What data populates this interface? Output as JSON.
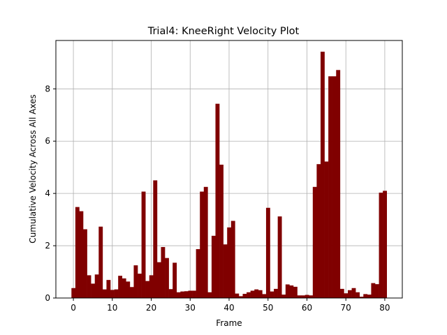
{
  "chart_data": {
    "type": "bar",
    "title": "Trial4: KneeRight Velocity Plot",
    "xlabel": "Frame",
    "ylabel": "Cumulative Velocity Across All Axes",
    "xlim": [
      -4.5,
      84.5
    ],
    "ylim": [
      0,
      9.85
    ],
    "x_ticks": [
      0,
      10,
      20,
      30,
      40,
      50,
      60,
      70,
      80
    ],
    "y_ticks": [
      0,
      2,
      4,
      6,
      8
    ],
    "grid": true,
    "bar_color": "#800000",
    "x": [
      0,
      1,
      2,
      3,
      4,
      5,
      6,
      7,
      8,
      9,
      10,
      11,
      12,
      13,
      14,
      15,
      16,
      17,
      18,
      19,
      20,
      21,
      22,
      23,
      24,
      25,
      26,
      27,
      28,
      29,
      30,
      31,
      32,
      33,
      34,
      35,
      36,
      37,
      38,
      39,
      40,
      41,
      42,
      43,
      44,
      45,
      46,
      47,
      48,
      49,
      50,
      51,
      52,
      53,
      54,
      55,
      56,
      57,
      58,
      59,
      60,
      61,
      62,
      63,
      64,
      65,
      66,
      67,
      68,
      69,
      70,
      71,
      72,
      73,
      74,
      75,
      76,
      77,
      78,
      79,
      80
    ],
    "values": [
      0.38,
      3.48,
      3.32,
      2.63,
      0.87,
      0.55,
      0.9,
      2.73,
      0.33,
      0.69,
      0.31,
      0.33,
      0.85,
      0.75,
      0.63,
      0.42,
      1.25,
      0.93,
      4.07,
      0.65,
      0.87,
      4.5,
      1.37,
      1.95,
      1.53,
      0.34,
      1.35,
      0.22,
      0.25,
      0.26,
      0.28,
      0.28,
      1.87,
      4.07,
      4.25,
      0.22,
      2.38,
      7.43,
      5.1,
      2.05,
      2.7,
      2.95,
      0.17,
      0.07,
      0.16,
      0.22,
      0.28,
      0.33,
      0.3,
      0.15,
      3.45,
      0.25,
      0.35,
      3.12,
      0.13,
      0.52,
      0.48,
      0.43,
      0.1,
      0.1,
      0.12,
      0.1,
      4.25,
      5.12,
      9.42,
      5.22,
      8.48,
      8.48,
      8.72,
      0.35,
      0.18,
      0.3,
      0.38,
      0.22,
      0.05,
      0.15,
      0.13,
      0.57,
      0.53,
      4.03,
      4.1
    ]
  }
}
